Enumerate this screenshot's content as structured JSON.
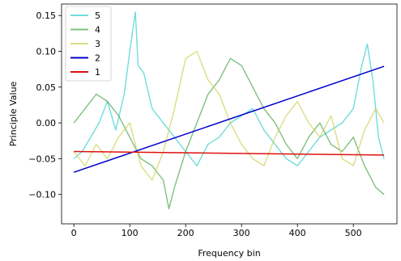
{
  "chart_data": {
    "type": "line",
    "title": "",
    "xlabel": "Frequency bin",
    "ylabel": "Principle Value",
    "xlim": [
      -22,
      578
    ],
    "ylim": [
      -0.141,
      0.166
    ],
    "xticks": [
      0,
      100,
      200,
      300,
      400,
      500
    ],
    "yticks": [
      -0.1,
      -0.05,
      0.0,
      0.05,
      0.1,
      0.15
    ],
    "ytick_labels": [
      "−0.10",
      "−0.05",
      "0.00",
      "0.05",
      "0.10",
      "0.15"
    ],
    "grid": false,
    "legend_position": "top-left",
    "series": [
      {
        "name": "5",
        "color": "#3fd1cf",
        "opacity": 0.75,
        "x": [
          0,
          15,
          30,
          45,
          60,
          75,
          90,
          100,
          110,
          115,
          125,
          140,
          160,
          180,
          200,
          220,
          240,
          260,
          280,
          300,
          320,
          340,
          360,
          380,
          400,
          420,
          440,
          460,
          480,
          500,
          515,
          525,
          535,
          545,
          555
        ],
        "y": [
          -0.05,
          -0.04,
          -0.02,
          0.0,
          0.03,
          -0.01,
          0.04,
          0.1,
          0.155,
          0.08,
          0.07,
          0.02,
          0.0,
          -0.02,
          -0.04,
          -0.06,
          -0.03,
          -0.02,
          0.0,
          0.01,
          0.02,
          -0.01,
          -0.03,
          -0.05,
          -0.06,
          -0.04,
          -0.02,
          -0.01,
          0.0,
          0.02,
          0.08,
          0.11,
          0.06,
          -0.02,
          -0.05
        ]
      },
      {
        "name": "4",
        "color": "#3a9e3a",
        "opacity": 0.65,
        "x": [
          0,
          20,
          40,
          60,
          80,
          100,
          120,
          140,
          160,
          170,
          180,
          200,
          220,
          240,
          260,
          280,
          300,
          320,
          340,
          360,
          380,
          400,
          420,
          440,
          460,
          480,
          500,
          520,
          540,
          555
        ],
        "y": [
          0.0,
          0.02,
          0.04,
          0.03,
          0.01,
          -0.02,
          -0.05,
          -0.06,
          -0.08,
          -0.12,
          -0.09,
          -0.04,
          0.0,
          0.04,
          0.06,
          0.09,
          0.08,
          0.05,
          0.02,
          0.0,
          -0.03,
          -0.05,
          -0.02,
          0.0,
          -0.03,
          -0.04,
          -0.02,
          -0.06,
          -0.09,
          -0.1
        ]
      },
      {
        "name": "3",
        "color": "#cfd35a",
        "opacity": 0.75,
        "x": [
          0,
          20,
          40,
          60,
          80,
          100,
          120,
          140,
          160,
          180,
          200,
          220,
          240,
          260,
          280,
          300,
          320,
          340,
          360,
          380,
          400,
          420,
          440,
          460,
          480,
          500,
          520,
          540,
          555
        ],
        "y": [
          -0.04,
          -0.06,
          -0.03,
          -0.05,
          -0.02,
          0.0,
          -0.06,
          -0.08,
          -0.04,
          0.02,
          0.09,
          0.1,
          0.06,
          0.04,
          0.0,
          -0.03,
          -0.05,
          -0.06,
          -0.02,
          0.01,
          0.03,
          0.0,
          -0.02,
          0.01,
          -0.05,
          -0.06,
          -0.01,
          0.02,
          0.0
        ]
      },
      {
        "name": "2",
        "color": "#0000cc",
        "opacity": 1,
        "x": [
          0,
          555
        ],
        "y": [
          -0.069,
          0.079
        ]
      },
      {
        "name": "1",
        "color": "#e01010",
        "opacity": 1,
        "x": [
          0,
          555
        ],
        "y": [
          -0.04,
          -0.045
        ]
      }
    ]
  }
}
